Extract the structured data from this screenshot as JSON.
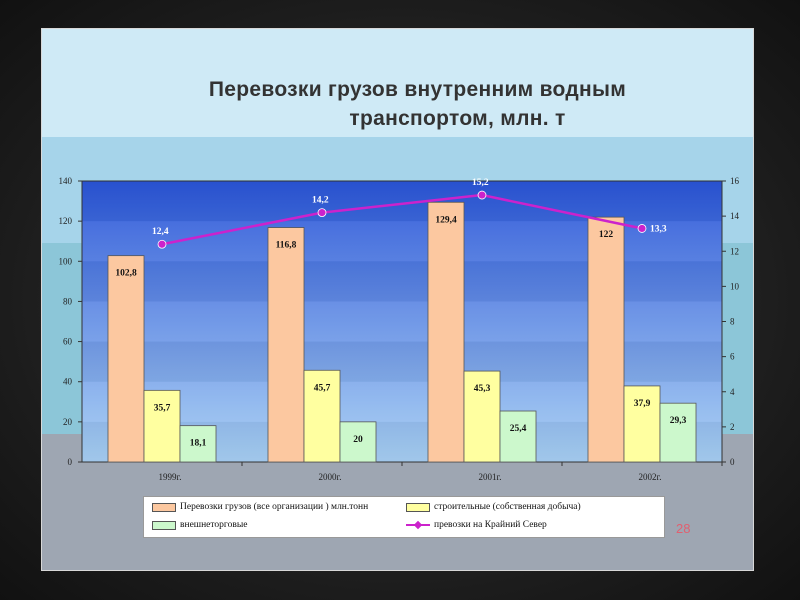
{
  "slide": {
    "title_line1": "Перевозки грузов внутренним водным",
    "title_line2": "транспортом, млн. т",
    "page_number": "28",
    "colors": {
      "band_top": "#cfeaf6",
      "band_mid": "#a6d4ea",
      "band_lower": "#8cc6d8",
      "band_bottom": "#9ea6b2",
      "plot_top": "#2a55d8",
      "plot_bottom": "#a8d0f4"
    }
  },
  "chart_data": {
    "type": "bar",
    "categories": [
      "1999г.",
      "2000г.",
      "2001г.",
      "2002г."
    ],
    "series": [
      {
        "name": "Перевозки грузов (все организации ) млн.тонн",
        "values": [
          102.8,
          116.8,
          129.4,
          122
        ],
        "labels": [
          "102,8",
          "116,8",
          "129,4",
          "122"
        ],
        "color": "#fcc8a0"
      },
      {
        "name": "строительные (собственная добыча)",
        "values": [
          35.7,
          45.7,
          45.3,
          37.9
        ],
        "labels": [
          "35,7",
          "45,7",
          "45,3",
          "37,9"
        ],
        "color": "#ffffa0"
      },
      {
        "name": "внешнеторговые",
        "values": [
          18.1,
          20,
          25.4,
          29.3
        ],
        "labels": [
          "18,1",
          "20",
          "25,4",
          "29,3"
        ],
        "color": "#ccf8cc"
      }
    ],
    "line_series": {
      "name": "превозки на Крайний Север",
      "values": [
        12.4,
        14.2,
        15.2,
        13.3
      ],
      "labels": [
        "12,4",
        "14,2",
        "15,2",
        "13,3"
      ],
      "color": "#cc22cc",
      "axis": "secondary"
    },
    "y_primary": {
      "range": [
        0,
        140
      ],
      "ticks": [
        "0",
        "20",
        "40",
        "60",
        "80",
        "100",
        "120",
        "140"
      ]
    },
    "y_secondary": {
      "range": [
        0,
        16
      ],
      "ticks": [
        "0",
        "2",
        "4",
        "6",
        "8",
        "10",
        "12",
        "14",
        "16"
      ]
    },
    "legend_position": "bottom"
  }
}
